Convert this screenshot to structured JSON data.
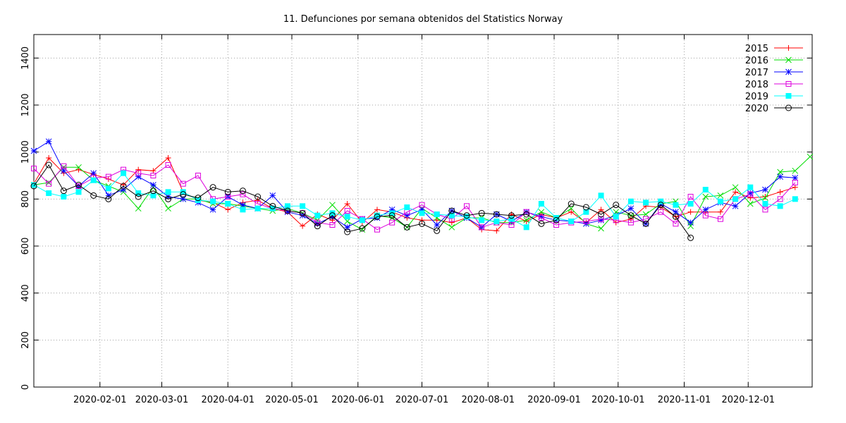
{
  "chart_data": {
    "type": "line",
    "title": "11. Defunciones por semana obtenidos del Statistics Norway",
    "xlabel": "",
    "ylabel": "",
    "ylim": [
      0,
      1500
    ],
    "y_ticks": [
      0,
      200,
      400,
      600,
      800,
      1000,
      1200,
      1400
    ],
    "xlim": [
      "2020-01-01",
      "2020-12-31"
    ],
    "x_ticks": [
      "2020-02-01",
      "2020-03-01",
      "2020-04-01",
      "2020-05-01",
      "2020-06-01",
      "2020-07-01",
      "2020-08-01",
      "2020-09-01",
      "2020-10-01",
      "2020-11-01",
      "2020-12-01"
    ],
    "grid": true,
    "legend_position": "top-right",
    "x_start": "2020-01-01",
    "x_step_days": 7,
    "series": [
      {
        "name": "2015",
        "color": "#ff0000",
        "marker": "plus",
        "values": [
          865,
          975,
          910,
          925,
          905,
          885,
          860,
          925,
          920,
          975,
          830,
          795,
          785,
          755,
          785,
          795,
          760,
          745,
          685,
          735,
          710,
          780,
          700,
          755,
          745,
          720,
          710,
          710,
          700,
          720,
          670,
          665,
          735,
          705,
          735,
          720,
          745,
          700,
          755,
          700,
          715,
          770,
          765,
          725,
          745,
          745,
          745,
          830,
          805,
          810,
          830,
          850
        ]
      },
      {
        "name": "2016",
        "color": "#00dd00",
        "marker": "x",
        "values": [
          860,
          870,
          935,
          935,
          880,
          855,
          830,
          760,
          850,
          760,
          800,
          800,
          780,
          780,
          770,
          760,
          750,
          760,
          740,
          710,
          775,
          705,
          670,
          730,
          720,
          680,
          760,
          720,
          680,
          720,
          720,
          700,
          700,
          710,
          745,
          720,
          760,
          695,
          675,
          745,
          730,
          735,
          780,
          790,
          685,
          810,
          815,
          850,
          780,
          805,
          915,
          920,
          980
        ]
      },
      {
        "name": "2017",
        "color": "#0000ff",
        "marker": "star",
        "values": [
          1005,
          1045,
          920,
          855,
          910,
          815,
          840,
          895,
          860,
          810,
          800,
          785,
          755,
          810,
          775,
          760,
          815,
          745,
          730,
          695,
          725,
          680,
          715,
          720,
          755,
          730,
          755,
          690,
          750,
          720,
          680,
          735,
          705,
          745,
          725,
          710,
          705,
          695,
          710,
          730,
          760,
          695,
          780,
          745,
          700,
          755,
          785,
          770,
          825,
          840,
          895,
          890
        ]
      },
      {
        "name": "2018",
        "color": "#dd00dd",
        "marker": "square",
        "values": [
          930,
          865,
          940,
          855,
          890,
          895,
          925,
          910,
          900,
          945,
          865,
          900,
          800,
          810,
          820,
          780,
          760,
          750,
          740,
          700,
          690,
          750,
          715,
          670,
          700,
          745,
          775,
          735,
          715,
          770,
          680,
          700,
          690,
          745,
          720,
          690,
          700,
          705,
          715,
          710,
          700,
          715,
          745,
          695,
          810,
          730,
          715,
          800,
          820,
          755,
          800,
          870
        ]
      },
      {
        "name": "2019",
        "color": "#00ffff",
        "marker": "filled-square",
        "values": [
          860,
          825,
          810,
          830,
          880,
          845,
          910,
          825,
          815,
          830,
          830,
          795,
          790,
          780,
          755,
          760,
          760,
          770,
          770,
          730,
          740,
          725,
          710,
          730,
          740,
          765,
          740,
          735,
          730,
          725,
          710,
          705,
          715,
          680,
          780,
          720,
          705,
          745,
          815,
          725,
          790,
          785,
          790,
          775,
          780,
          840,
          790,
          800,
          850,
          780,
          770,
          800
        ]
      },
      {
        "name": "2020",
        "color": "#000000",
        "marker": "circle",
        "values": [
          855,
          945,
          835,
          860,
          815,
          800,
          855,
          810,
          835,
          800,
          820,
          805,
          850,
          830,
          835,
          810,
          770,
          750,
          740,
          685,
          730,
          660,
          675,
          725,
          730,
          680,
          695,
          665,
          750,
          730,
          740,
          735,
          730,
          735,
          695,
          710,
          780,
          765,
          735,
          775,
          730,
          695,
          775,
          725,
          635
        ]
      }
    ]
  }
}
